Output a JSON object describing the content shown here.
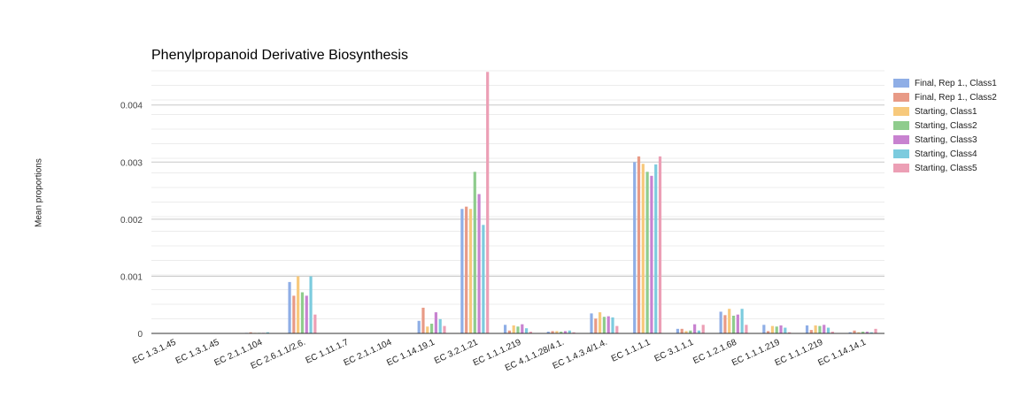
{
  "chart_data": {
    "type": "bar",
    "title": "Phenylpropanoid Derivative Biosynthesis",
    "xlabel": "",
    "ylabel": "Mean proportions",
    "ylim": [
      0,
      0.0046
    ],
    "yticks": [
      0,
      0.001,
      0.002,
      0.003,
      0.004
    ],
    "ytick_labels": [
      "0",
      "0.001",
      "0.002",
      "0.003",
      "0.004"
    ],
    "grid": true,
    "legend_position": "right",
    "categories": [
      "EC 1.3.1.45",
      "EC 1.3.1.45",
      "EC 2.1.1.104",
      "EC 2.6.1.1/2.6.",
      "EC 1.11.1.7",
      "EC 2.1.1.104",
      "EC 1.14.19.1",
      "EC 3.2.1.21",
      "EC 1.1.1.219",
      "EC 4.1.1.28/4.1.",
      "EC 1.4.3.4/1.4.",
      "EC 1.1.1.1",
      "EC 3.1.1.1",
      "EC 1.2.1.68",
      "EC 1.1.1.219",
      "EC 1.1.1.219",
      "EC 1.14.14.1"
    ],
    "series": [
      {
        "name": "Final, Rep 1., Class1",
        "color": "#8faee6",
        "values": [
          3e-06,
          3e-06,
          1e-05,
          0.0009,
          2e-06,
          5e-06,
          0.00022,
          0.00218,
          0.00015,
          3e-05,
          0.00035,
          0.003,
          8e-05,
          0.00038,
          0.00015,
          0.00014,
          2e-05
        ]
      },
      {
        "name": "Final, Rep 1., Class2",
        "color": "#e89a86",
        "values": [
          1e-06,
          2e-06,
          2e-05,
          0.00066,
          1e-06,
          2e-06,
          0.00045,
          0.00222,
          5e-05,
          4e-05,
          0.00026,
          0.0031,
          8e-05,
          0.00032,
          4e-05,
          6e-05,
          5e-05
        ]
      },
      {
        "name": "Starting, Class1",
        "color": "#f7c97c",
        "values": [
          2e-06,
          2e-06,
          1e-05,
          0.001,
          1e-06,
          3e-06,
          0.00012,
          0.00218,
          0.00014,
          4e-05,
          0.00037,
          0.00297,
          4e-05,
          0.00043,
          0.00013,
          0.00014,
          2e-05
        ]
      },
      {
        "name": "Starting, Class2",
        "color": "#8fcc8d",
        "values": [
          3e-06,
          2e-06,
          1e-05,
          0.00072,
          1e-06,
          3e-06,
          0.00017,
          0.00283,
          0.00012,
          3e-05,
          0.00029,
          0.00283,
          5e-05,
          0.00031,
          0.00012,
          0.00013,
          3e-05
        ]
      },
      {
        "name": "Starting, Class3",
        "color": "#c882d0",
        "values": [
          2e-06,
          2e-06,
          1e-05,
          0.00066,
          1e-06,
          2e-06,
          0.00037,
          0.00244,
          0.00016,
          4e-05,
          0.0003,
          0.00276,
          0.00016,
          0.00033,
          0.00014,
          0.00015,
          3e-05
        ]
      },
      {
        "name": "Starting, Class4",
        "color": "#7ccbde",
        "values": [
          3e-06,
          3e-06,
          2e-05,
          0.001,
          2e-06,
          5e-06,
          0.00025,
          0.0019,
          9e-05,
          5e-05,
          0.00028,
          0.00296,
          5e-05,
          0.00043,
          0.0001,
          0.0001,
          2e-05
        ]
      },
      {
        "name": "Starting, Class5",
        "color": "#ec9fb5",
        "values": [
          1e-06,
          1e-06,
          5e-06,
          0.00033,
          1e-06,
          2e-06,
          0.00013,
          0.00458,
          3e-05,
          2e-05,
          0.00013,
          0.0031,
          0.00015,
          0.00015,
          2e-05,
          3e-05,
          8e-05
        ]
      }
    ]
  }
}
